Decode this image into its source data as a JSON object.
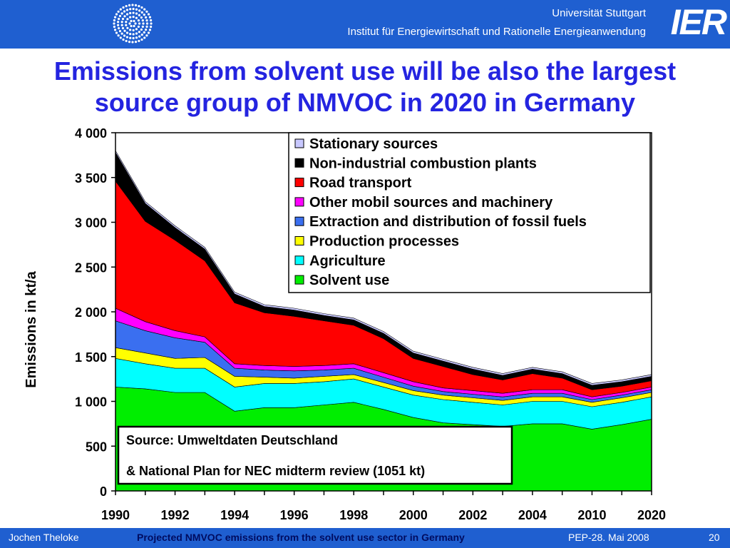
{
  "header": {
    "university": "Universität Stuttgart",
    "institute": "Institut für Energiewirtschaft und Rationelle Energieanwendung",
    "logo_text": "IER"
  },
  "slide_title_line1": "Emissions from solvent use will be also the largest",
  "slide_title_line2": "source group of NMVOC in 2020 in Germany",
  "chart_data": {
    "type": "area",
    "stacked": true,
    "categories": [
      "1990",
      "1991",
      "1992",
      "1993",
      "1994",
      "1995",
      "1996",
      "1997",
      "1998",
      "1999",
      "2000",
      "2001",
      "2002",
      "2003",
      "2004",
      "2005",
      "2010",
      "2015",
      "2020"
    ],
    "tick_labels": [
      "1990",
      "1992",
      "1994",
      "1996",
      "1998",
      "2000",
      "2002",
      "2004",
      "2010",
      "2020"
    ],
    "ylabel": "Emissions in kt/a",
    "ylim": [
      0,
      4000
    ],
    "yticks": [
      0,
      500,
      1000,
      1500,
      2000,
      2500,
      3000,
      3500,
      4000
    ],
    "ytick_labels": [
      "0",
      "500",
      "1 000",
      "1 500",
      "2 000",
      "2 500",
      "3 000",
      "3 500",
      "4 000"
    ],
    "grid": false,
    "legend_position": "top-right",
    "series": [
      {
        "name": "Solvent use",
        "color": "#00ee00",
        "values": [
          1160,
          1140,
          1100,
          1100,
          890,
          930,
          930,
          960,
          990,
          910,
          820,
          760,
          740,
          720,
          750,
          750,
          690,
          740,
          800
        ]
      },
      {
        "name": "Agriculture",
        "color": "#00ffff",
        "values": [
          320,
          280,
          270,
          270,
          270,
          270,
          270,
          260,
          260,
          250,
          250,
          260,
          250,
          240,
          250,
          250,
          250,
          250,
          250
        ]
      },
      {
        "name": "Production processes",
        "color": "#ffff00",
        "values": [
          120,
          120,
          110,
          120,
          120,
          70,
          60,
          60,
          50,
          50,
          50,
          50,
          50,
          50,
          50,
          50,
          50,
          50,
          50
        ]
      },
      {
        "name": "Extraction and distribution of fossil fuels",
        "color": "#3a6ff0",
        "values": [
          300,
          250,
          230,
          170,
          90,
          80,
          80,
          70,
          70,
          60,
          50,
          40,
          40,
          40,
          40,
          40,
          30,
          30,
          30
        ]
      },
      {
        "name": "Other mobil sources and machinery",
        "color": "#ff00ff",
        "values": [
          140,
          100,
          80,
          60,
          50,
          50,
          50,
          50,
          50,
          50,
          50,
          40,
          40,
          40,
          40,
          40,
          30,
          30,
          30
        ]
      },
      {
        "name": "Road transport",
        "color": "#ff0000",
        "values": [
          1420,
          1120,
          1010,
          850,
          680,
          590,
          560,
          500,
          430,
          380,
          260,
          240,
          180,
          150,
          180,
          130,
          80,
          70,
          70
        ]
      },
      {
        "name": "Non-industrial combustion plants",
        "color": "#000000",
        "values": [
          320,
          200,
          140,
          130,
          100,
          70,
          70,
          60,
          60,
          60,
          60,
          60,
          60,
          50,
          50,
          50,
          50,
          50,
          50
        ]
      },
      {
        "name": "Stationary sources",
        "color": "#c8c8ff",
        "values": [
          20,
          20,
          20,
          20,
          20,
          20,
          20,
          20,
          20,
          20,
          20,
          20,
          20,
          20,
          20,
          20,
          20,
          20,
          20
        ]
      }
    ],
    "source_note_line1": "Source: Umweltdaten Deutschland",
    "source_note_line2": "& National Plan for NEC midterm review (1051 kt)"
  },
  "footer": {
    "author": "Jochen Theloke",
    "title": "Projected NMVOC emissions from the solvent use sector in Germany",
    "event": "PEP-28. Mai 2008",
    "page": "20"
  }
}
